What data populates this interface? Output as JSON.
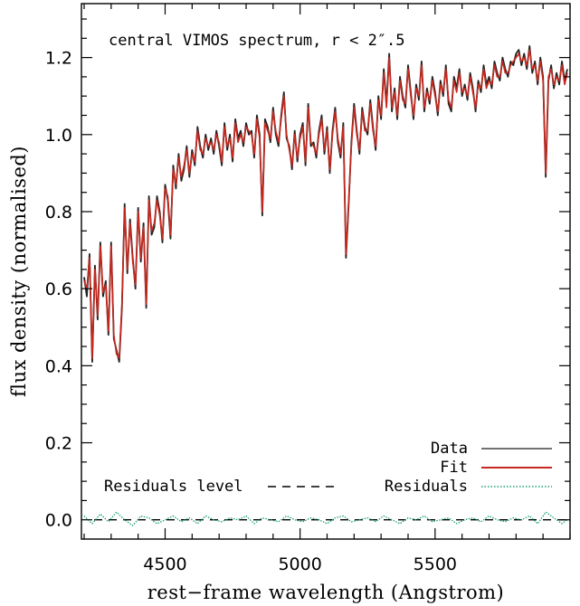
{
  "chart_data": {
    "type": "line",
    "title": "central VIMOS spectrum, r < 2″.5",
    "xlabel": "rest−frame wavelength (Angstrom)",
    "ylabel": "flux density (normalised)",
    "xlim": [
      4190,
      6000
    ],
    "ylim": [
      -0.05,
      1.34
    ],
    "xticks": [
      4500,
      5000,
      5500
    ],
    "xtick_labels": [
      "4500",
      "5000",
      "5500"
    ],
    "yticks": [
      0.0,
      0.2,
      0.4,
      0.6,
      0.8,
      1.0,
      1.2
    ],
    "ytick_labels": [
      "0.0",
      "0.2",
      "0.4",
      "0.6",
      "0.8",
      "1.0",
      "1.2"
    ],
    "grid": false,
    "legend": {
      "placement": "bottom-right",
      "entries": [
        {
          "name": "Data",
          "color": "#444444",
          "style": "solid"
        },
        {
          "name": "Fit",
          "color": "#c8281e",
          "style": "solid"
        },
        {
          "name": "Residuals",
          "color": "#1a9e6e",
          "style": "dotted"
        }
      ]
    },
    "annotation": {
      "text": "Residuals level",
      "value": 0.0,
      "style": "dashed"
    },
    "series": [
      {
        "name": "Data",
        "color": "#222222",
        "x": [
          4200,
          4210,
          4220,
          4230,
          4240,
          4250,
          4260,
          4270,
          4280,
          4290,
          4300,
          4310,
          4320,
          4330,
          4340,
          4350,
          4360,
          4370,
          4380,
          4390,
          4400,
          4410,
          4420,
          4430,
          4440,
          4450,
          4460,
          4470,
          4480,
          4490,
          4500,
          4510,
          4520,
          4530,
          4540,
          4550,
          4560,
          4570,
          4580,
          4590,
          4600,
          4610,
          4620,
          4630,
          4640,
          4650,
          4660,
          4670,
          4680,
          4690,
          4700,
          4710,
          4720,
          4730,
          4740,
          4750,
          4760,
          4770,
          4780,
          4790,
          4800,
          4810,
          4820,
          4830,
          4840,
          4850,
          4860,
          4870,
          4880,
          4890,
          4900,
          4910,
          4920,
          4930,
          4940,
          4950,
          4960,
          4970,
          4980,
          4990,
          5000,
          5010,
          5020,
          5030,
          5040,
          5050,
          5060,
          5070,
          5080,
          5090,
          5100,
          5110,
          5120,
          5130,
          5140,
          5150,
          5160,
          5170,
          5180,
          5190,
          5200,
          5210,
          5220,
          5230,
          5240,
          5250,
          5260,
          5270,
          5280,
          5290,
          5300,
          5310,
          5320,
          5330,
          5340,
          5350,
          5360,
          5370,
          5380,
          5390,
          5400,
          5410,
          5420,
          5430,
          5440,
          5450,
          5460,
          5470,
          5480,
          5490,
          5500,
          5510,
          5520,
          5530,
          5540,
          5550,
          5560,
          5570,
          5580,
          5590,
          5600,
          5610,
          5620,
          5630,
          5640,
          5650,
          5660,
          5670,
          5680,
          5690,
          5700,
          5710,
          5720,
          5730,
          5740,
          5750,
          5760,
          5770,
          5780,
          5790,
          5800,
          5810,
          5820,
          5830,
          5840,
          5850,
          5860,
          5870,
          5880,
          5890,
          5900,
          5910,
          5920,
          5930,
          5940,
          5950,
          5960,
          5970,
          5980,
          5990
        ],
        "values": [
          0.63,
          0.58,
          0.69,
          0.41,
          0.66,
          0.52,
          0.72,
          0.58,
          0.62,
          0.48,
          0.72,
          0.47,
          0.44,
          0.41,
          0.55,
          0.82,
          0.64,
          0.78,
          0.68,
          0.6,
          0.81,
          0.67,
          0.77,
          0.55,
          0.84,
          0.74,
          0.76,
          0.84,
          0.8,
          0.72,
          0.87,
          0.83,
          0.73,
          0.92,
          0.86,
          0.95,
          0.88,
          0.91,
          0.97,
          0.89,
          0.96,
          0.92,
          1.02,
          0.97,
          0.94,
          1.0,
          0.96,
          0.99,
          0.95,
          1.01,
          0.97,
          0.92,
          1.03,
          0.96,
          1.0,
          0.93,
          1.04,
          0.99,
          1.01,
          0.97,
          1.03,
          1.0,
          1.01,
          0.94,
          1.05,
          1.0,
          0.79,
          1.04,
          1.02,
          0.98,
          1.07,
          1.0,
          0.97,
          1.05,
          1.11,
          0.99,
          0.97,
          0.91,
          1.01,
          0.93,
          1.0,
          1.03,
          0.92,
          1.08,
          0.97,
          0.98,
          0.94,
          1.01,
          1.05,
          0.95,
          1.02,
          0.9,
          1.01,
          1.07,
          0.98,
          0.94,
          1.03,
          0.68,
          0.82,
          0.98,
          1.08,
          1.01,
          0.95,
          1.07,
          1.02,
          1.0,
          1.09,
          1.02,
          0.96,
          1.1,
          1.04,
          1.17,
          1.08,
          1.21,
          1.06,
          1.12,
          1.04,
          1.15,
          1.1,
          1.07,
          1.18,
          1.11,
          1.04,
          1.13,
          1.09,
          1.19,
          1.06,
          1.12,
          1.08,
          1.15,
          1.11,
          1.05,
          1.14,
          1.1,
          1.18,
          1.08,
          1.06,
          1.15,
          1.12,
          1.17,
          1.1,
          1.13,
          1.09,
          1.16,
          1.12,
          1.06,
          1.14,
          1.11,
          1.18,
          1.13,
          1.15,
          1.12,
          1.19,
          1.16,
          1.14,
          1.2,
          1.17,
          1.15,
          1.19,
          1.18,
          1.21,
          1.22,
          1.18,
          1.21,
          1.17,
          1.23,
          1.16,
          1.19,
          1.13,
          1.2,
          1.15,
          0.89,
          1.14,
          1.18,
          1.12,
          1.16,
          1.13,
          1.19,
          1.14,
          1.17
        ]
      },
      {
        "name": "Fit",
        "color": "#c8281e",
        "x": [
          4200,
          4210,
          4220,
          4230,
          4240,
          4250,
          4260,
          4270,
          4280,
          4290,
          4300,
          4310,
          4320,
          4330,
          4340,
          4350,
          4360,
          4370,
          4380,
          4390,
          4400,
          4410,
          4420,
          4430,
          4440,
          4450,
          4460,
          4470,
          4480,
          4490,
          4500,
          4510,
          4520,
          4530,
          4540,
          4550,
          4560,
          4570,
          4580,
          4590,
          4600,
          4610,
          4620,
          4630,
          4640,
          4650,
          4660,
          4670,
          4680,
          4690,
          4700,
          4710,
          4720,
          4730,
          4740,
          4750,
          4760,
          4770,
          4780,
          4790,
          4800,
          4810,
          4820,
          4830,
          4840,
          4850,
          4860,
          4870,
          4880,
          4890,
          4900,
          4910,
          4920,
          4930,
          4940,
          4950,
          4960,
          4970,
          4980,
          4990,
          5000,
          5010,
          5020,
          5030,
          5040,
          5050,
          5060,
          5070,
          5080,
          5090,
          5100,
          5110,
          5120,
          5130,
          5140,
          5150,
          5160,
          5170,
          5180,
          5190,
          5200,
          5210,
          5220,
          5230,
          5240,
          5250,
          5260,
          5270,
          5280,
          5290,
          5300,
          5310,
          5320,
          5330,
          5340,
          5350,
          5360,
          5370,
          5380,
          5390,
          5400,
          5410,
          5420,
          5430,
          5440,
          5450,
          5460,
          5470,
          5480,
          5490,
          5500,
          5510,
          5520,
          5530,
          5540,
          5550,
          5560,
          5570,
          5580,
          5590,
          5600,
          5610,
          5620,
          5630,
          5640,
          5650,
          5660,
          5670,
          5680,
          5690,
          5700,
          5710,
          5720,
          5730,
          5740,
          5750,
          5760,
          5770,
          5780,
          5790,
          5800,
          5810,
          5820,
          5830,
          5840,
          5850,
          5860,
          5870,
          5880,
          5890,
          5900,
          5910,
          5920,
          5930,
          5940,
          5950,
          5960,
          5970,
          5980,
          5990
        ],
        "values": [
          0.62,
          0.6,
          0.68,
          0.42,
          0.65,
          0.53,
          0.71,
          0.59,
          0.61,
          0.49,
          0.71,
          0.48,
          0.43,
          0.42,
          0.56,
          0.81,
          0.65,
          0.77,
          0.67,
          0.61,
          0.8,
          0.68,
          0.76,
          0.56,
          0.83,
          0.75,
          0.77,
          0.83,
          0.79,
          0.73,
          0.86,
          0.84,
          0.74,
          0.91,
          0.87,
          0.94,
          0.89,
          0.92,
          0.96,
          0.9,
          0.95,
          0.93,
          1.01,
          0.96,
          0.95,
          0.99,
          0.97,
          0.98,
          0.96,
          1.0,
          0.98,
          0.93,
          1.02,
          0.97,
          0.99,
          0.94,
          1.03,
          0.98,
          1.0,
          0.98,
          1.02,
          1.01,
          1.0,
          0.95,
          1.04,
          0.99,
          0.8,
          1.03,
          1.01,
          0.99,
          1.06,
          1.01,
          0.98,
          1.04,
          1.1,
          1.0,
          0.96,
          0.92,
          1.0,
          0.94,
          0.99,
          1.02,
          0.93,
          1.07,
          0.98,
          0.97,
          0.95,
          1.0,
          1.04,
          0.96,
          1.01,
          0.91,
          1.0,
          1.06,
          0.99,
          0.95,
          1.02,
          0.69,
          0.83,
          0.97,
          1.07,
          1.0,
          0.96,
          1.06,
          1.01,
          1.01,
          1.08,
          1.01,
          0.97,
          1.09,
          1.05,
          1.16,
          1.07,
          1.2,
          1.07,
          1.11,
          1.05,
          1.14,
          1.09,
          1.08,
          1.17,
          1.1,
          1.05,
          1.12,
          1.1,
          1.18,
          1.07,
          1.11,
          1.09,
          1.14,
          1.1,
          1.06,
          1.13,
          1.11,
          1.17,
          1.09,
          1.07,
          1.14,
          1.11,
          1.16,
          1.11,
          1.12,
          1.1,
          1.15,
          1.11,
          1.07,
          1.13,
          1.12,
          1.17,
          1.12,
          1.14,
          1.13,
          1.18,
          1.15,
          1.15,
          1.19,
          1.16,
          1.16,
          1.18,
          1.19,
          1.2,
          1.21,
          1.19,
          1.2,
          1.18,
          1.22,
          1.17,
          1.18,
          1.14,
          1.19,
          1.14,
          0.9,
          1.15,
          1.17,
          1.13,
          1.15,
          1.14,
          1.18,
          1.13,
          1.16
        ]
      },
      {
        "name": "Residuals",
        "color": "#1a9e6e",
        "x": [
          4200,
          4230,
          4260,
          4290,
          4320,
          4350,
          4380,
          4410,
          4440,
          4470,
          4500,
          4530,
          4560,
          4590,
          4620,
          4650,
          4680,
          4710,
          4740,
          4770,
          4800,
          4830,
          4860,
          4890,
          4920,
          4950,
          4980,
          5010,
          5040,
          5070,
          5100,
          5130,
          5160,
          5190,
          5220,
          5250,
          5280,
          5310,
          5340,
          5370,
          5400,
          5430,
          5460,
          5490,
          5520,
          5550,
          5580,
          5610,
          5640,
          5670,
          5700,
          5730,
          5760,
          5790,
          5820,
          5850,
          5880,
          5910,
          5940,
          5970,
          5990
        ],
        "values": [
          0.01,
          -0.01,
          0.015,
          -0.005,
          0.02,
          0.0,
          -0.015,
          0.01,
          0.005,
          -0.01,
          0.0,
          0.01,
          -0.005,
          0.005,
          -0.01,
          0.01,
          0.0,
          -0.005,
          0.005,
          0.0,
          0.01,
          -0.01,
          0.005,
          0.0,
          -0.005,
          0.01,
          0.0,
          -0.005,
          0.005,
          0.0,
          -0.01,
          0.005,
          0.01,
          -0.005,
          0.0,
          0.005,
          -0.005,
          0.01,
          0.0,
          -0.01,
          0.005,
          0.0,
          0.01,
          -0.005,
          0.0,
          0.005,
          -0.01,
          0.0,
          0.005,
          -0.005,
          0.01,
          0.0,
          -0.005,
          0.005,
          0.0,
          0.01,
          -0.01,
          0.02,
          0.005,
          -0.01,
          0.0
        ]
      }
    ]
  }
}
